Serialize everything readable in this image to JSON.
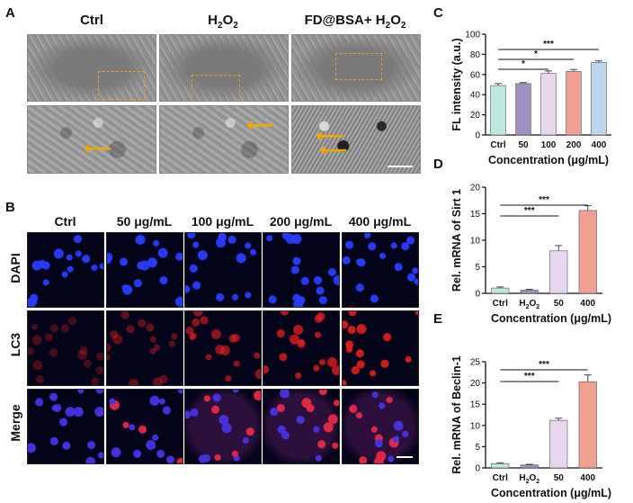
{
  "panel_labels": {
    "A": "A",
    "B": "B",
    "C": "C",
    "D": "D",
    "E": "E"
  },
  "panelA": {
    "columns": [
      "Ctrl",
      "H",
      "2",
      "O",
      "2",
      "FD@BSA+ H",
      "2",
      "O",
      "2"
    ]
  },
  "panelB": {
    "columns": [
      "Ctrl",
      "50 μg/mL",
      "100 μg/mL",
      "200 μg/mL",
      "400 μg/mL"
    ],
    "rows": [
      "DAPI",
      "LC3",
      "Merge"
    ]
  },
  "chart_data": [
    {
      "type": "bar",
      "panel": "C",
      "categories": [
        "Ctrl",
        "50",
        "100",
        "200",
        "400"
      ],
      "values": [
        49,
        51,
        61,
        63,
        72
      ],
      "errors": [
        2,
        1,
        2.5,
        2,
        1.5
      ],
      "colors": [
        "#bde8df",
        "#9f8fc4",
        "#e8d6ef",
        "#f0a090",
        "#bcd6ee"
      ],
      "ylabel": "FL intensity (a.u.)",
      "xlabel": "Concentration (μg/mL)",
      "ylim": [
        0,
        100
      ],
      "yticks": [
        0,
        20,
        40,
        60,
        80,
        100
      ],
      "significance": [
        {
          "from": "Ctrl",
          "to": "100",
          "label": "*"
        },
        {
          "from": "Ctrl",
          "to": "200",
          "label": "*"
        },
        {
          "from": "Ctrl",
          "to": "400",
          "label": "***"
        }
      ]
    },
    {
      "type": "bar",
      "panel": "D",
      "categories": [
        "Ctrl",
        "H2O2",
        "50",
        "400"
      ],
      "values": [
        1.0,
        0.6,
        8.0,
        15.6
      ],
      "errors": [
        0.2,
        0.15,
        1.0,
        0.9
      ],
      "colors": [
        "#bde8df",
        "#9f8fc4",
        "#e8d6ef",
        "#f0a090"
      ],
      "ylabel": "Rel. mRNA of Sirt 1",
      "xlabel": "Concentration  (μg/mL)",
      "ylim": [
        0,
        20
      ],
      "yticks": [
        0,
        5,
        10,
        15,
        20
      ],
      "significance": [
        {
          "from": "Ctrl",
          "to": "50",
          "label": "***"
        },
        {
          "from": "Ctrl",
          "to": "400",
          "label": "***"
        }
      ]
    },
    {
      "type": "bar",
      "panel": "E",
      "categories": [
        "Ctrl",
        "H2O2",
        "50",
        "400"
      ],
      "values": [
        1.0,
        0.7,
        11.2,
        20.3
      ],
      "errors": [
        0.2,
        0.15,
        0.5,
        1.6
      ],
      "colors": [
        "#bde8df",
        "#9f8fc4",
        "#e8d6ef",
        "#f0a090"
      ],
      "ylabel": "Rel. mRNA of Beclin-1",
      "xlabel": "Concentration  (μg/mL)",
      "ylim": [
        0,
        25
      ],
      "yticks": [
        0,
        5,
        10,
        15,
        20,
        25
      ],
      "significance": [
        {
          "from": "Ctrl",
          "to": "50",
          "label": "***"
        },
        {
          "from": "Ctrl",
          "to": "400",
          "label": "***"
        }
      ]
    }
  ]
}
